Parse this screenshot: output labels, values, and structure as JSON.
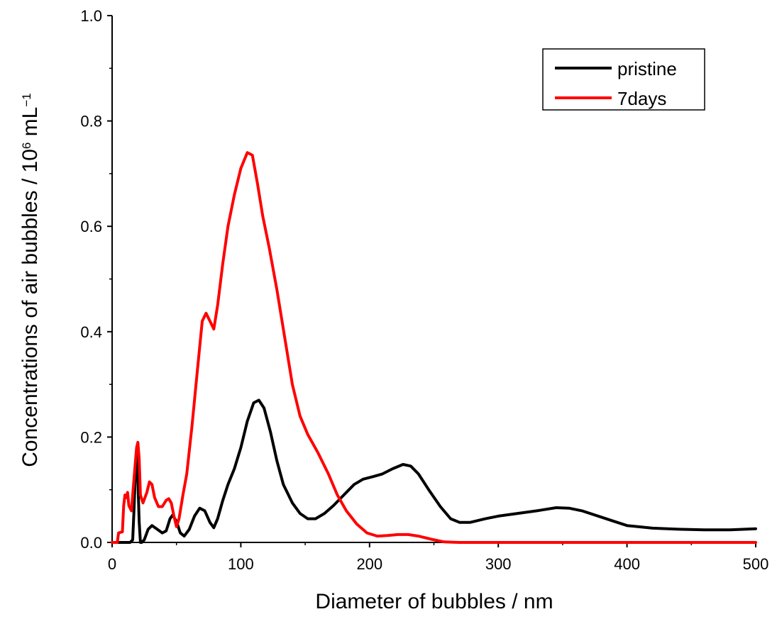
{
  "chart_data": {
    "type": "line",
    "xlabel": "Diameter of bubbles / nm",
    "ylabel": {
      "prefix": "Concentrations of air bubbles / 10",
      "exp1": "6",
      "unit": " mL",
      "exp2": "−1"
    },
    "xlim": [
      0,
      500
    ],
    "ylim": [
      0,
      1.0
    ],
    "x_ticks": [
      0,
      100,
      200,
      300,
      400,
      500
    ],
    "x_tick_labels": [
      "0",
      "100",
      "200",
      "300",
      "400",
      "500"
    ],
    "y_ticks": [
      0,
      0.2,
      0.4,
      0.6,
      0.8,
      1.0
    ],
    "y_tick_labels": [
      "0.0",
      "0.2",
      "0.4",
      "0.6",
      "0.8",
      "1.0"
    ],
    "grid": false,
    "legend_position": "top-right",
    "series": [
      {
        "name": "pristine",
        "color": "#000000",
        "points": [
          [
            0,
            0
          ],
          [
            14,
            0
          ],
          [
            16,
            0.005
          ],
          [
            17,
            0.06
          ],
          [
            18,
            0.13
          ],
          [
            19,
            0.17
          ],
          [
            20,
            0.12
          ],
          [
            21,
            0.04
          ],
          [
            22,
            0.0
          ],
          [
            23,
            0.0
          ],
          [
            25,
            0.005
          ],
          [
            28,
            0.025
          ],
          [
            31,
            0.032
          ],
          [
            35,
            0.025
          ],
          [
            39,
            0.018
          ],
          [
            42,
            0.022
          ],
          [
            45,
            0.045
          ],
          [
            47,
            0.052
          ],
          [
            50,
            0.04
          ],
          [
            53,
            0.018
          ],
          [
            56,
            0.012
          ],
          [
            60,
            0.025
          ],
          [
            64,
            0.05
          ],
          [
            68,
            0.065
          ],
          [
            72,
            0.06
          ],
          [
            76,
            0.038
          ],
          [
            79,
            0.028
          ],
          [
            82,
            0.045
          ],
          [
            86,
            0.08
          ],
          [
            90,
            0.11
          ],
          [
            95,
            0.14
          ],
          [
            100,
            0.18
          ],
          [
            105,
            0.23
          ],
          [
            110,
            0.265
          ],
          [
            114,
            0.27
          ],
          [
            118,
            0.255
          ],
          [
            123,
            0.21
          ],
          [
            128,
            0.155
          ],
          [
            133,
            0.11
          ],
          [
            140,
            0.075
          ],
          [
            146,
            0.055
          ],
          [
            152,
            0.045
          ],
          [
            158,
            0.045
          ],
          [
            165,
            0.055
          ],
          [
            172,
            0.07
          ],
          [
            180,
            0.09
          ],
          [
            188,
            0.11
          ],
          [
            195,
            0.12
          ],
          [
            203,
            0.125
          ],
          [
            210,
            0.13
          ],
          [
            218,
            0.14
          ],
          [
            226,
            0.148
          ],
          [
            232,
            0.145
          ],
          [
            238,
            0.13
          ],
          [
            246,
            0.1
          ],
          [
            255,
            0.068
          ],
          [
            263,
            0.045
          ],
          [
            270,
            0.038
          ],
          [
            278,
            0.038
          ],
          [
            290,
            0.045
          ],
          [
            300,
            0.05
          ],
          [
            315,
            0.055
          ],
          [
            330,
            0.06
          ],
          [
            345,
            0.066
          ],
          [
            355,
            0.065
          ],
          [
            365,
            0.06
          ],
          [
            380,
            0.048
          ],
          [
            390,
            0.04
          ],
          [
            400,
            0.032
          ],
          [
            420,
            0.027
          ],
          [
            440,
            0.025
          ],
          [
            460,
            0.024
          ],
          [
            480,
            0.024
          ],
          [
            500,
            0.026
          ]
        ]
      },
      {
        "name": "7days",
        "color": "#ff0000",
        "points": [
          [
            0,
            0
          ],
          [
            4,
            0.0
          ],
          [
            5,
            0.018
          ],
          [
            8,
            0.02
          ],
          [
            9,
            0.07
          ],
          [
            10,
            0.09
          ],
          [
            11,
            0.085
          ],
          [
            12,
            0.095
          ],
          [
            13,
            0.07
          ],
          [
            15,
            0.06
          ],
          [
            17,
            0.12
          ],
          [
            19,
            0.18
          ],
          [
            20,
            0.19
          ],
          [
            21,
            0.16
          ],
          [
            22,
            0.09
          ],
          [
            24,
            0.075
          ],
          [
            27,
            0.095
          ],
          [
            29,
            0.115
          ],
          [
            31,
            0.11
          ],
          [
            33,
            0.085
          ],
          [
            36,
            0.068
          ],
          [
            39,
            0.068
          ],
          [
            42,
            0.08
          ],
          [
            44,
            0.083
          ],
          [
            46,
            0.075
          ],
          [
            48,
            0.05
          ],
          [
            50,
            0.03
          ],
          [
            52,
            0.045
          ],
          [
            55,
            0.09
          ],
          [
            58,
            0.13
          ],
          [
            62,
            0.22
          ],
          [
            66,
            0.32
          ],
          [
            70,
            0.42
          ],
          [
            73,
            0.435
          ],
          [
            76,
            0.42
          ],
          [
            79,
            0.405
          ],
          [
            82,
            0.45
          ],
          [
            86,
            0.53
          ],
          [
            90,
            0.6
          ],
          [
            95,
            0.66
          ],
          [
            100,
            0.71
          ],
          [
            105,
            0.74
          ],
          [
            109,
            0.735
          ],
          [
            113,
            0.68
          ],
          [
            117,
            0.62
          ],
          [
            122,
            0.56
          ],
          [
            128,
            0.48
          ],
          [
            134,
            0.39
          ],
          [
            140,
            0.3
          ],
          [
            146,
            0.24
          ],
          [
            152,
            0.205
          ],
          [
            160,
            0.17
          ],
          [
            168,
            0.13
          ],
          [
            175,
            0.09
          ],
          [
            182,
            0.06
          ],
          [
            190,
            0.035
          ],
          [
            198,
            0.018
          ],
          [
            206,
            0.012
          ],
          [
            214,
            0.013
          ],
          [
            222,
            0.015
          ],
          [
            230,
            0.015
          ],
          [
            238,
            0.012
          ],
          [
            248,
            0.006
          ],
          [
            258,
            0.001
          ],
          [
            270,
            0
          ],
          [
            500,
            0
          ]
        ]
      }
    ]
  }
}
